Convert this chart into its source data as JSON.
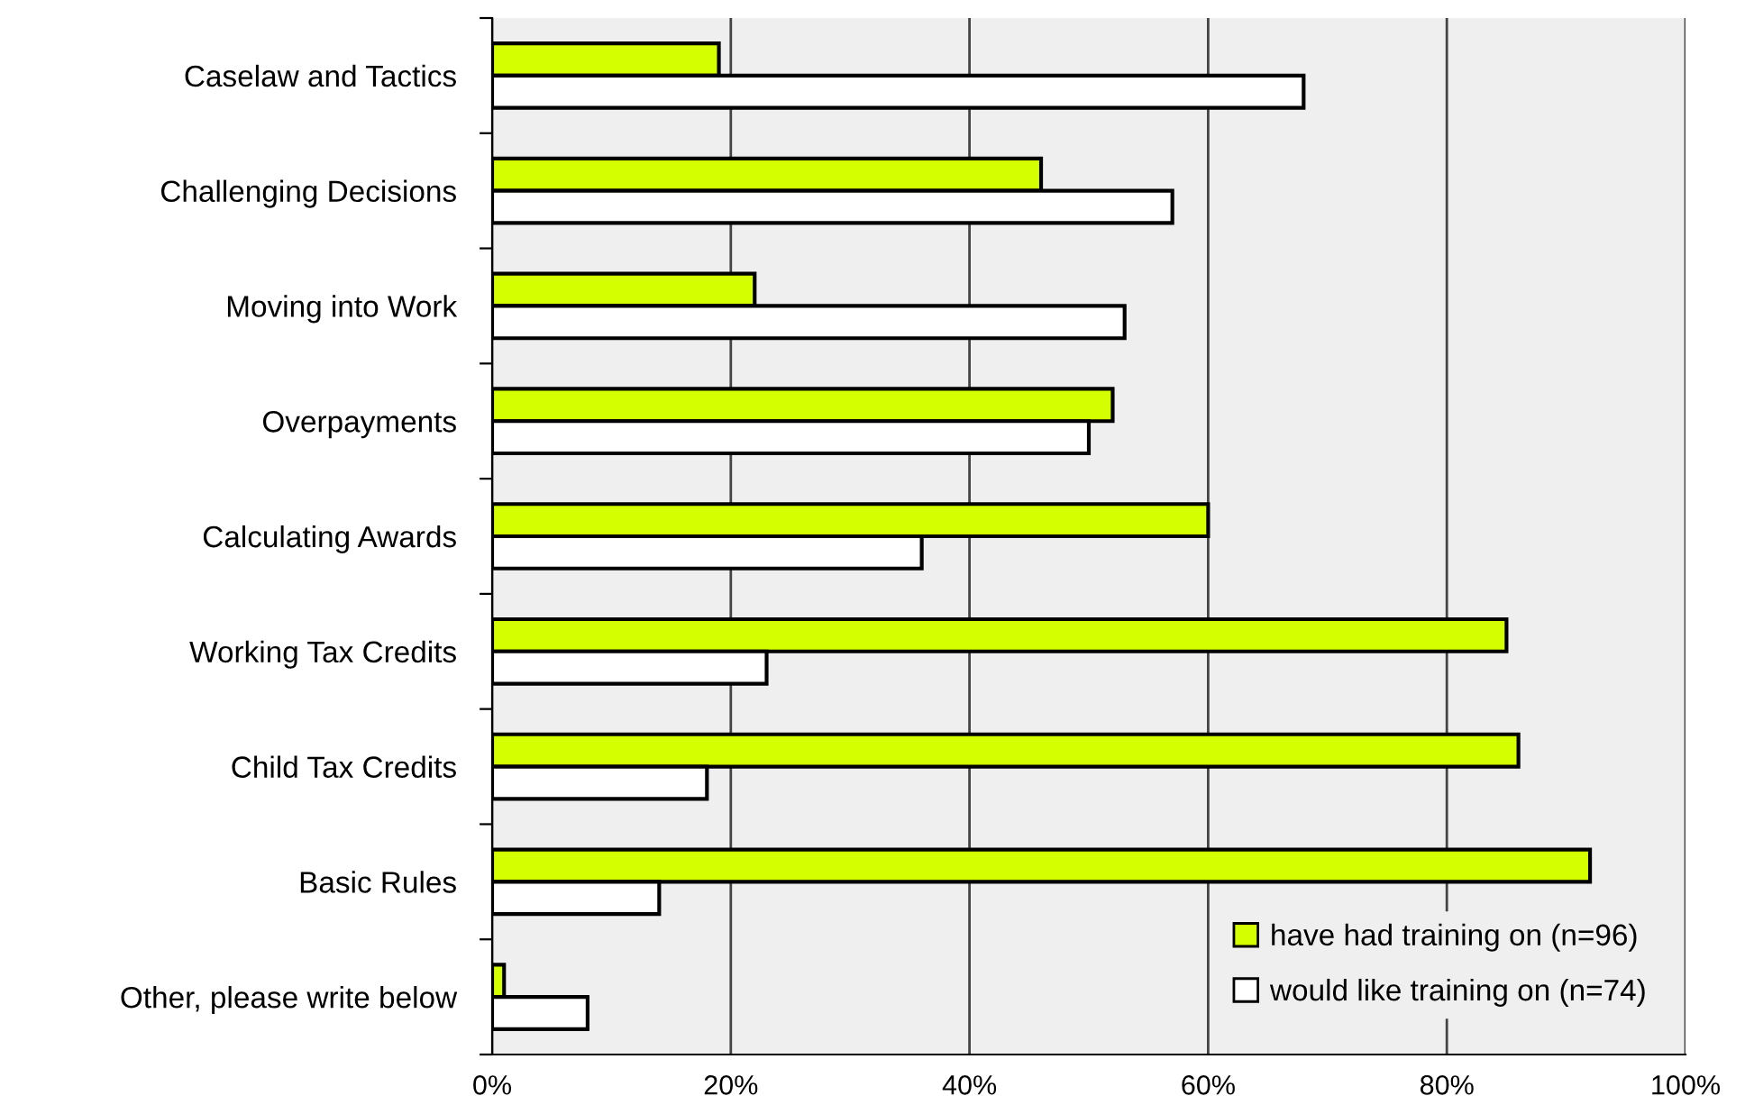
{
  "chart_data": {
    "type": "bar",
    "orientation": "horizontal",
    "categories": [
      "Caselaw and Tactics",
      "Challenging Decisions",
      "Moving into Work",
      "Overpayments",
      "Calculating Awards",
      "Working Tax Credits",
      "Child Tax Credits",
      "Basic Rules",
      "Other, please write below"
    ],
    "series": [
      {
        "name": "have had training on (n=96)",
        "color": "#d4ff00",
        "values": [
          19,
          46,
          22,
          52,
          60,
          85,
          86,
          92,
          1
        ]
      },
      {
        "name": "would like training on (n=74)",
        "color": "#ffffff",
        "values": [
          68,
          57,
          53,
          50,
          36,
          23,
          18,
          14,
          8
        ]
      }
    ],
    "xlim": [
      0,
      100
    ],
    "xticks": [
      {
        "value": 0,
        "label": "0%"
      },
      {
        "value": 20,
        "label": "20%"
      },
      {
        "value": 40,
        "label": "40%"
      },
      {
        "value": 60,
        "label": "60%"
      },
      {
        "value": 80,
        "label": "80%"
      },
      {
        "value": 100,
        "label": "100%"
      }
    ],
    "grid": "x",
    "legend": "bottom right"
  }
}
